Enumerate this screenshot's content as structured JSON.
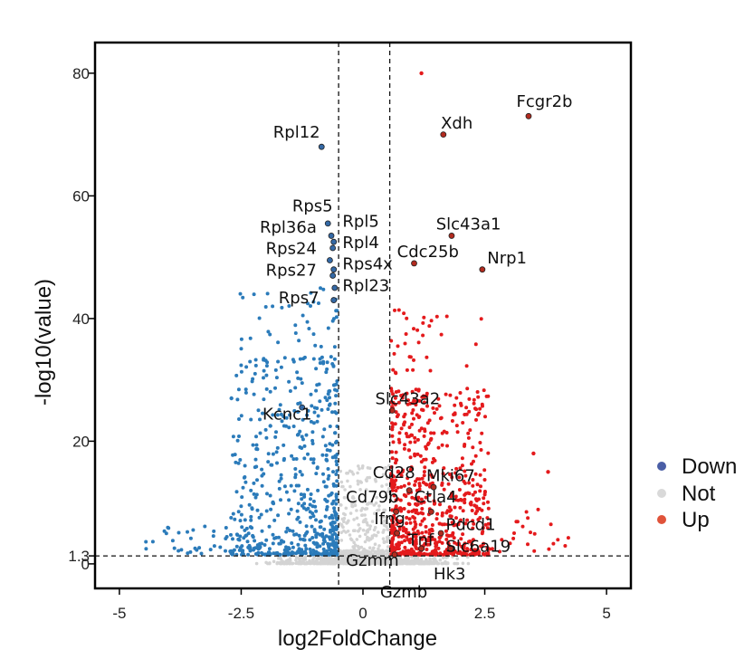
{
  "chart_data": {
    "type": "scatter",
    "xlabel": "log2FoldChange",
    "ylabel": "-log10(value)",
    "xlim": [
      -5.5,
      5.5
    ],
    "ylim": [
      -4,
      85
    ],
    "x_ticks": [
      {
        "value": -5,
        "label": "-5"
      },
      {
        "value": -2.5,
        "label": "-2.5"
      },
      {
        "value": 0,
        "label": "0"
      },
      {
        "value": 2.5,
        "label": "2.5"
      },
      {
        "value": 5,
        "label": "5"
      }
    ],
    "y_ticks": [
      {
        "value": 0,
        "label": "0"
      },
      {
        "value": 1.3,
        "label": "1.3"
      },
      {
        "value": 20,
        "label": "20"
      },
      {
        "value": 40,
        "label": "40"
      },
      {
        "value": 60,
        "label": "60"
      },
      {
        "value": 80,
        "label": "80"
      }
    ],
    "thresholds": {
      "x": [
        -0.5,
        0.55
      ],
      "y": 1.3
    },
    "grid": false,
    "legend_position": "right",
    "legend": [
      {
        "label": "Down",
        "color": "#4a5ea6"
      },
      {
        "label": "Not",
        "color": "#d9d9d9"
      },
      {
        "label": "Up",
        "color": "#e0533a"
      }
    ],
    "colors": {
      "down": "#2b7bba",
      "not": "#d3d3d3",
      "up": "#e41a1c"
    },
    "labeled_genes": [
      {
        "gene": "Rpl12",
        "x": -0.85,
        "y": 68,
        "group": "down"
      },
      {
        "gene": "Rps5",
        "x": -0.72,
        "y": 55.5,
        "group": "down"
      },
      {
        "gene": "Rpl36a",
        "x": -0.65,
        "y": 53.5,
        "group": "down"
      },
      {
        "gene": "Rpl5",
        "x": -0.6,
        "y": 52.5,
        "group": "down"
      },
      {
        "gene": "Rpl4",
        "x": -0.62,
        "y": 51.5,
        "group": "down"
      },
      {
        "gene": "Rps24",
        "x": -0.68,
        "y": 49.5,
        "group": "down"
      },
      {
        "gene": "Rps4x",
        "x": -0.6,
        "y": 48,
        "group": "down"
      },
      {
        "gene": "Rps27",
        "x": -0.62,
        "y": 47,
        "group": "down"
      },
      {
        "gene": "Rpl23",
        "x": -0.58,
        "y": 45,
        "group": "down"
      },
      {
        "gene": "Rps7",
        "x": -0.6,
        "y": 43,
        "group": "down"
      },
      {
        "gene": "Kcnc1",
        "x": -1.25,
        "y": 25.5,
        "group": "down"
      },
      {
        "gene": "Fcgr2b",
        "x": 3.4,
        "y": 73,
        "group": "up"
      },
      {
        "gene": "Xdh",
        "x": 1.65,
        "y": 70,
        "group": "up"
      },
      {
        "gene": "Slc43a1",
        "x": 1.82,
        "y": 53.5,
        "group": "up"
      },
      {
        "gene": "Cdc25b",
        "x": 1.05,
        "y": 49,
        "group": "up"
      },
      {
        "gene": "Nrp1",
        "x": 2.45,
        "y": 48,
        "group": "up"
      },
      {
        "gene": "Slc43a2",
        "x": 0.6,
        "y": 25,
        "group": "up"
      },
      {
        "gene": "Cd28",
        "x": 0.95,
        "y": 12,
        "group": "up"
      },
      {
        "gene": "Mki67",
        "x": 1.45,
        "y": 12.5,
        "group": "up"
      },
      {
        "gene": "Cd79b",
        "x": 0.68,
        "y": 8.5,
        "group": "up"
      },
      {
        "gene": "Ctla4",
        "x": 1.4,
        "y": 8.5,
        "group": "up"
      },
      {
        "gene": "Ifng",
        "x": 0.7,
        "y": 5,
        "group": "up"
      },
      {
        "gene": "Pdcd1",
        "x": 1.6,
        "y": 5,
        "group": "up"
      },
      {
        "gene": "Tnf",
        "x": 1.2,
        "y": 2.5,
        "group": "up"
      },
      {
        "gene": "Slc6a19",
        "x": 1.8,
        "y": 2.5,
        "group": "up"
      },
      {
        "gene": "Gzmm",
        "x": 0.65,
        "y": 1.5,
        "group": "up"
      },
      {
        "gene": "Hk3",
        "x": 1.55,
        "y": -0.5,
        "group": "up"
      },
      {
        "gene": "Gzmb",
        "x": 0.95,
        "y": -1.5,
        "group": "up"
      }
    ],
    "label_placement": {
      "Rpl12": [
        -0.88,
        69.5,
        "end"
      ],
      "Rps5": [
        -0.62,
        57.5,
        "end"
      ],
      "Rpl36a": [
        -0.95,
        54,
        "end"
      ],
      "Rps24": [
        -0.95,
        50.5,
        "end"
      ],
      "Rps27": [
        -0.95,
        47,
        "end"
      ],
      "Rps7": [
        -0.9,
        42.5,
        "end"
      ],
      "Rpl5": [
        -0.42,
        55,
        "start"
      ],
      "Rpl4": [
        -0.42,
        51.5,
        "start"
      ],
      "Rps4x": [
        -0.42,
        48,
        "start"
      ],
      "Rpl23": [
        -0.42,
        44.5,
        "start"
      ],
      "Kcnc1": [
        -1.05,
        23.5,
        "end"
      ],
      "Fcgr2b": [
        3.15,
        74.5,
        "start"
      ],
      "Xdh": [
        1.6,
        71,
        "start"
      ],
      "Slc43a1": [
        1.5,
        54.5,
        "start"
      ],
      "Cdc25b": [
        0.7,
        50,
        "start"
      ],
      "Nrp1": [
        2.55,
        49,
        "start"
      ],
      "Slc43a2": [
        0.25,
        26,
        "start"
      ],
      "Cd28": [
        0.2,
        14,
        "start"
      ],
      "Mki67": [
        1.3,
        13.5,
        "start"
      ],
      "Cd79b": [
        -0.35,
        10,
        "start"
      ],
      "Ctla4": [
        1.05,
        10,
        "start"
      ],
      "Ifng": [
        0.23,
        6.5,
        "start"
      ],
      "Pdcd1": [
        1.7,
        5.5,
        "start"
      ],
      "Tnf": [
        0.92,
        3,
        "start"
      ],
      "Slc6a19": [
        1.7,
        2,
        "start"
      ],
      "Gzmm": [
        -0.35,
        -0.3,
        "start"
      ],
      "Hk3": [
        1.45,
        -2.5,
        "start"
      ],
      "Gzmb": [
        0.35,
        -5.5,
        "start"
      ]
    }
  }
}
